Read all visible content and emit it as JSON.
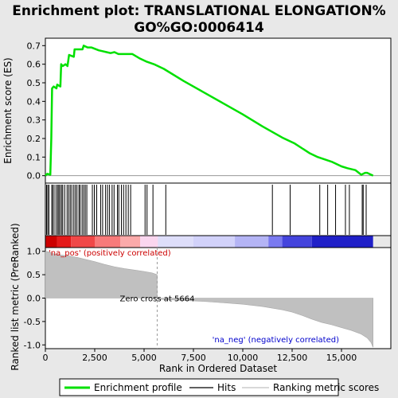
{
  "chart_data": {
    "type": "line",
    "title": "Enrichment plot: TRANSLATIONAL ELONGATION%GO%GO:0006414",
    "top_panel": {
      "ylabel": "Enrichment score (ES)",
      "ylim": [
        -0.04,
        0.74
      ],
      "yticks": [
        "0.0",
        "0.1",
        "0.2",
        "0.3",
        "0.4",
        "0.5",
        "0.6",
        "0.7"
      ],
      "ytick_values": [
        0.0,
        0.1,
        0.2,
        0.3,
        0.4,
        0.5,
        0.6,
        0.7
      ],
      "series": [
        {
          "name": "Enrichment profile",
          "color": "#00e000",
          "points": [
            [
              0,
              0
            ],
            [
              100,
              0.01
            ],
            [
              250,
              0.005
            ],
            [
              300,
              0.2
            ],
            [
              340,
              0.47
            ],
            [
              420,
              0.48
            ],
            [
              560,
              0.47
            ],
            [
              600,
              0.49
            ],
            [
              760,
              0.48
            ],
            [
              800,
              0.6
            ],
            [
              880,
              0.59
            ],
            [
              1020,
              0.6
            ],
            [
              1120,
              0.59
            ],
            [
              1200,
              0.65
            ],
            [
              1440,
              0.64
            ],
            [
              1480,
              0.68
            ],
            [
              1640,
              0.68
            ],
            [
              1700,
              0.68
            ],
            [
              1880,
              0.68
            ],
            [
              1940,
              0.7
            ],
            [
              2140,
              0.69
            ],
            [
              2340,
              0.69
            ],
            [
              2700,
              0.675
            ],
            [
              3100,
              0.665
            ],
            [
              3300,
              0.66
            ],
            [
              3500,
              0.665
            ],
            [
              3700,
              0.655
            ],
            [
              4000,
              0.655
            ],
            [
              4400,
              0.655
            ],
            [
              4800,
              0.63
            ],
            [
              5100,
              0.615
            ],
            [
              5500,
              0.6
            ],
            [
              6000,
              0.575
            ],
            [
              7000,
              0.51
            ],
            [
              8000,
              0.45
            ],
            [
              9000,
              0.39
            ],
            [
              10000,
              0.33
            ],
            [
              11000,
              0.265
            ],
            [
              12000,
              0.205
            ],
            [
              12600,
              0.175
            ],
            [
              13400,
              0.12
            ],
            [
              13800,
              0.1
            ],
            [
              14500,
              0.075
            ],
            [
              15000,
              0.05
            ],
            [
              15300,
              0.04
            ],
            [
              15700,
              0.03
            ],
            [
              16000,
              0.005
            ],
            [
              16200,
              0.015
            ],
            [
              16300,
              0.015
            ],
            [
              16500,
              0.005
            ],
            [
              16600,
              0
            ]
          ]
        }
      ]
    },
    "hits_panel": {
      "hit_positions": [
        60,
        120,
        180,
        330,
        360,
        440,
        540,
        620,
        680,
        740,
        820,
        880,
        980,
        1100,
        1180,
        1260,
        1340,
        1440,
        1520,
        1600,
        1700,
        1760,
        1860,
        1940,
        2020,
        2100,
        2380,
        2480,
        2600,
        2800,
        2900,
        3050,
        3150,
        3250,
        3380,
        3480,
        3650,
        3720,
        3850,
        3960,
        4080,
        4200,
        4320,
        5050,
        5150,
        5450,
        6100,
        11500,
        12400,
        13900,
        14300,
        14700,
        15200,
        15400,
        16050,
        16100,
        16250
      ]
    },
    "bottom_panel": {
      "ylabel": "Ranked list metric (PreRanked)",
      "ylim": [
        -1.08,
        1.08
      ],
      "yticks": [
        "1.0",
        "0.5",
        "0.0",
        "-0.5",
        "-1.0"
      ],
      "ytick_values": [
        1.0,
        0.5,
        0.0,
        -0.5,
        -1.0
      ],
      "fill_color": "#c0c0c0",
      "metric_curve": [
        [
          0,
          1.0
        ],
        [
          150,
          0.99
        ],
        [
          400,
          0.95
        ],
        [
          800,
          0.92
        ],
        [
          1200,
          0.9
        ],
        [
          1600,
          0.87
        ],
        [
          2000,
          0.83
        ],
        [
          2500,
          0.78
        ],
        [
          3000,
          0.72
        ],
        [
          3500,
          0.67
        ],
        [
          4000,
          0.63
        ],
        [
          4500,
          0.6
        ],
        [
          5000,
          0.57
        ],
        [
          5400,
          0.54
        ],
        [
          5664,
          0.5
        ],
        [
          5664,
          0
        ],
        [
          5665,
          -0.02
        ],
        [
          6000,
          -0.03
        ],
        [
          7000,
          -0.05
        ],
        [
          8000,
          -0.07
        ],
        [
          9000,
          -0.1
        ],
        [
          10000,
          -0.13
        ],
        [
          11000,
          -0.18
        ],
        [
          12000,
          -0.25
        ],
        [
          12500,
          -0.3
        ],
        [
          13000,
          -0.37
        ],
        [
          13500,
          -0.45
        ],
        [
          14000,
          -0.52
        ],
        [
          14500,
          -0.57
        ],
        [
          15000,
          -0.63
        ],
        [
          15500,
          -0.69
        ],
        [
          16000,
          -0.77
        ],
        [
          16300,
          -0.85
        ],
        [
          16500,
          -0.95
        ],
        [
          16600,
          -1.05
        ]
      ],
      "zero_cross": 5664,
      "zero_cross_label": "Zero cross at 5664",
      "pos_label": "'na_pos' (positively correlated)",
      "neg_label": "'na_neg' (negatively correlated)",
      "pos_label_color": "#cc0000",
      "neg_label_color": "#0000cc"
    },
    "heatmap_bar": {
      "segments": [
        {
          "end": 600,
          "color": "#cc0000"
        },
        {
          "end": 1300,
          "color": "#e41a1a"
        },
        {
          "end": 2500,
          "color": "#f04848"
        },
        {
          "end": 3800,
          "color": "#f77a7a"
        },
        {
          "end": 4800,
          "color": "#fbaaaa"
        },
        {
          "end": 5700,
          "color": "#fad6ef"
        },
        {
          "end": 7500,
          "color": "#dedefa"
        },
        {
          "end": 9600,
          "color": "#d2d2fa"
        },
        {
          "end": 11300,
          "color": "#b4b4f5"
        },
        {
          "end": 12000,
          "color": "#7a7af0"
        },
        {
          "end": 13500,
          "color": "#4444dd"
        },
        {
          "end": 16600,
          "color": "#2020c8"
        }
      ]
    },
    "xaxis": {
      "xlabel": "Rank in Ordered Dataset",
      "xlim": [
        0,
        17500
      ],
      "xticks": [
        "0",
        "2,500",
        "5,000",
        "7,500",
        "10,000",
        "12,500",
        "15,000"
      ],
      "xtick_values": [
        0,
        2500,
        5000,
        7500,
        10000,
        12500,
        15000
      ]
    },
    "legend": {
      "placement": "bottom",
      "items": [
        {
          "label": "Enrichment profile",
          "color": "#00e000",
          "style": "thick-line"
        },
        {
          "label": "Hits",
          "color": "#000000",
          "style": "line"
        },
        {
          "label": "Ranking metric scores",
          "color": "#c0c0c0",
          "style": "line"
        }
      ]
    }
  }
}
